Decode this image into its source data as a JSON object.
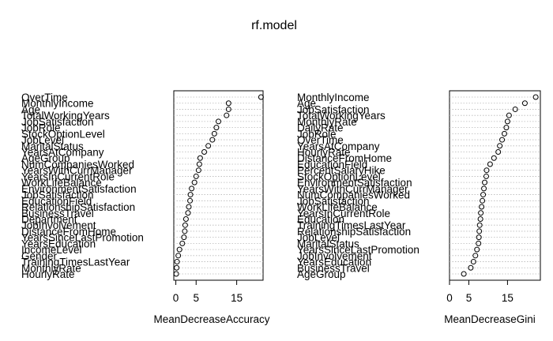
{
  "title": "rf.model",
  "chart_data": [
    {
      "type": "scatter",
      "style": "dotchart",
      "xlabel": "MeanDecreaseAccuracy",
      "xlim": [
        -0.5,
        21.5
      ],
      "xticks": [
        0,
        5,
        15
      ],
      "grid": true,
      "labels": [
        "OverTime",
        "MonthlyIncome",
        "Age",
        "TotalWorkingYears",
        "JobSatisfaction",
        "JobRole",
        "StockOptionLevel",
        "JobLevel",
        "MaritalStatus",
        "YearsAtCompany",
        "AgeGroup",
        "NumCompaniesWorked",
        "YearsWithCurrManager",
        "YearsInCurrentRole",
        "WorkLifeBalance",
        "EnvironmentSatisfaction",
        "JobSatisfaction",
        "EducationField",
        "RelationshipSatisfaction",
        "BusinessTravel",
        "Department",
        "JobInvolvement",
        "DistanceFromHome",
        "YearsSinceLastPromotion",
        "YearsEducation",
        "IncomeLevel",
        "Gender",
        "TrainingTimesLastYear",
        "MonthlyRate",
        "HourlyRate"
      ],
      "values": [
        21,
        13,
        13,
        12.5,
        10.5,
        10,
        9.5,
        9,
        8,
        7,
        6,
        5.8,
        5.6,
        5,
        4.6,
        3.9,
        3.6,
        3.5,
        3.2,
        3,
        2.5,
        2.3,
        2.2,
        2,
        1.6,
        0.9,
        0.6,
        0.3,
        0.2,
        0.1
      ]
    },
    {
      "type": "scatter",
      "style": "dotchart",
      "xlabel": "MeanDecreaseGini",
      "xlim": [
        0,
        23.5
      ],
      "xticks": [
        0,
        5,
        15
      ],
      "grid": true,
      "labels": [
        "MonthlyIncome",
        "Age",
        "JobSatisfaction",
        "TotalWorkingYears",
        "MonthlyRate",
        "DailyRate",
        "JobRole",
        "OverTime",
        "YearsAtCompany",
        "HourlyRate",
        "DistanceFromHome",
        "EducationField",
        "PercentSalaryHike",
        "StockOptionLevel",
        "EnvironmentSatisfaction",
        "YearsWithCurrManager",
        "NumCompaniesWorked",
        "JobSatisfaction",
        "WorkLifeBalance",
        "YearsInCurrentRole",
        "Education",
        "TrainingTimesLastYear",
        "RelationshipSatisfaction",
        "JobLevel",
        "MaritalStatus",
        "YearsSinceLastPromotion",
        "JobInvolvement",
        "YearsEducation",
        "BusinessTravel",
        "AgeGroup"
      ],
      "values": [
        22.3,
        19.5,
        17,
        15.4,
        15,
        14.7,
        14.2,
        13.6,
        13,
        12.6,
        11.5,
        10.5,
        9.6,
        9.5,
        9.1,
        8.9,
        8.7,
        8.5,
        8.3,
        8.1,
        8,
        7.8,
        7.7,
        7.6,
        7.5,
        7.1,
        6.7,
        6.2,
        5.5,
        3.7
      ]
    }
  ]
}
